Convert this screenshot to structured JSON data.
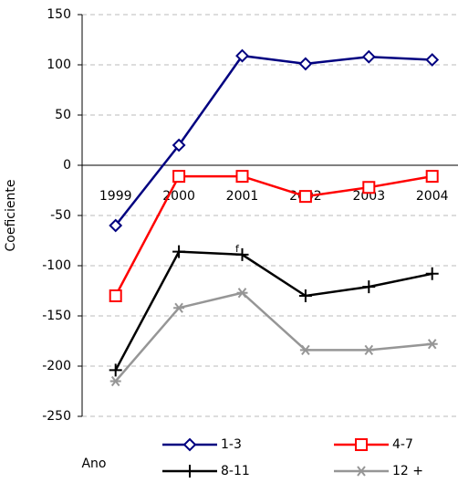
{
  "chart_data": {
    "type": "line",
    "y_label": "Coeficiente",
    "x_label": "Ano",
    "categories": [
      "1999",
      "2000",
      "2001",
      "2002",
      "2003",
      "2004"
    ],
    "series": [
      {
        "name": "1-3",
        "color": "#000080",
        "marker": "diamond",
        "values": [
          -60,
          20,
          109,
          101,
          108,
          105
        ]
      },
      {
        "name": "4-7",
        "color": "#ff0000",
        "marker": "square",
        "values": [
          -130,
          -11,
          -11,
          -31,
          -22,
          -11
        ]
      },
      {
        "name": "8-11",
        "color": "#000000",
        "marker": "plus",
        "values": [
          -204,
          -86,
          -89,
          -130,
          -121,
          -108
        ]
      },
      {
        "name": "12 +",
        "color": "#969696",
        "marker": "star",
        "values": [
          -215,
          -142,
          -127,
          -184,
          -184,
          -178
        ]
      }
    ],
    "annotations": [
      "f"
    ],
    "ylim": [
      -250,
      150
    ],
    "yticks": [
      -250,
      -200,
      -150,
      -100,
      -50,
      0,
      50,
      100,
      150
    ],
    "grid": true
  }
}
